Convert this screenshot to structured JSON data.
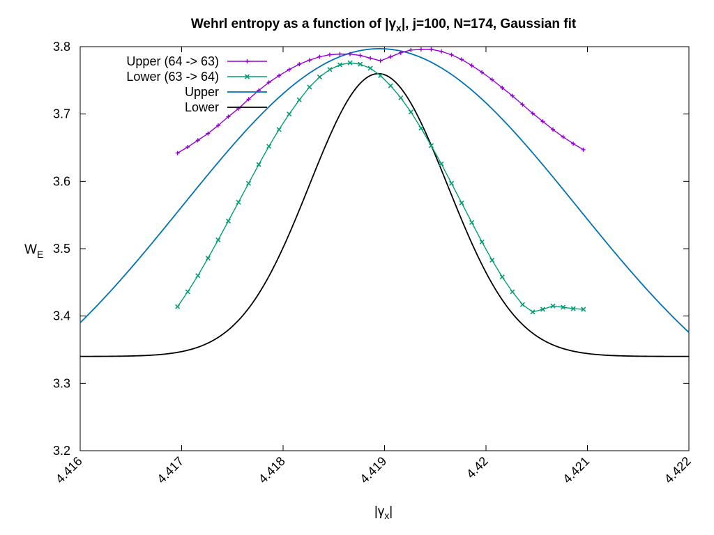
{
  "chart_data": {
    "type": "line",
    "title": {
      "pre": "Wehrl entropy as a function of |",
      "gamma": "γ",
      "sub": "x",
      "post": "|,  j=100, N=174, Gaussian fit"
    },
    "xlabel": {
      "pre": "|",
      "gamma": "γ",
      "sub": "x",
      "post": "|"
    },
    "ylabel": {
      "main": "W",
      "sub": "E"
    },
    "xlim": [
      4.416,
      4.422
    ],
    "ylim": [
      3.2,
      3.8
    ],
    "xticks": [
      "4.416",
      "4.417",
      "4.418",
      "4.419",
      "4.42",
      "4.421",
      "4.422"
    ],
    "yticks": [
      "3.2",
      "3.3",
      "3.4",
      "3.5",
      "3.6",
      "3.7",
      "3.8"
    ],
    "grid": false,
    "legend_position": "top-left",
    "series": [
      {
        "name": "Upper (64 -> 63)",
        "color": "#9400d3",
        "marker": "plus",
        "x": [
          4.41696,
          4.41706,
          4.41716,
          4.41726,
          4.41736,
          4.41746,
          4.41756,
          4.41766,
          4.41776,
          4.41786,
          4.41796,
          4.41806,
          4.41816,
          4.41826,
          4.41836,
          4.41846,
          4.41856,
          4.41866,
          4.41876,
          4.41886,
          4.41896,
          4.41906,
          4.41916,
          4.41926,
          4.41936,
          4.41946,
          4.41956,
          4.41966,
          4.41976,
          4.41986,
          4.41996,
          4.42006,
          4.42016,
          4.42026,
          4.42036,
          4.42046,
          4.42056,
          4.42066,
          4.42076,
          4.42086,
          4.42096
        ],
        "y": [
          3.642,
          3.651,
          3.661,
          3.671,
          3.683,
          3.696,
          3.708,
          3.722,
          3.735,
          3.747,
          3.757,
          3.766,
          3.774,
          3.78,
          3.785,
          3.788,
          3.789,
          3.789,
          3.787,
          3.783,
          3.779,
          3.785,
          3.791,
          3.795,
          3.796,
          3.796,
          3.793,
          3.788,
          3.781,
          3.772,
          3.762,
          3.751,
          3.739,
          3.727,
          3.714,
          3.701,
          3.689,
          3.677,
          3.666,
          3.656,
          3.647
        ]
      },
      {
        "name": "Lower (63 -> 64)",
        "color": "#009e73",
        "marker": "cross",
        "x": [
          4.41696,
          4.41706,
          4.41716,
          4.41726,
          4.41736,
          4.41746,
          4.41756,
          4.41766,
          4.41776,
          4.41786,
          4.41796,
          4.41806,
          4.41816,
          4.41826,
          4.41836,
          4.41846,
          4.41856,
          4.41866,
          4.41876,
          4.41886,
          4.41896,
          4.41906,
          4.41916,
          4.41926,
          4.41936,
          4.41946,
          4.41956,
          4.41966,
          4.41976,
          4.41986,
          4.41996,
          4.42006,
          4.42016,
          4.42026,
          4.42036,
          4.42046,
          4.42056,
          4.42066,
          4.42076,
          4.42086,
          4.42096
        ],
        "y": [
          3.414,
          3.436,
          3.46,
          3.486,
          3.513,
          3.541,
          3.569,
          3.597,
          3.625,
          3.652,
          3.677,
          3.7,
          3.721,
          3.74,
          3.755,
          3.766,
          3.773,
          3.776,
          3.774,
          3.768,
          3.757,
          3.742,
          3.724,
          3.703,
          3.679,
          3.653,
          3.626,
          3.597,
          3.568,
          3.539,
          3.51,
          3.483,
          3.458,
          3.436,
          3.417,
          3.406,
          3.41,
          3.415,
          3.413,
          3.411,
          3.41
        ]
      },
      {
        "name": "Upper",
        "color": "#0072b2",
        "marker": "none",
        "fit": {
          "base": 3.2,
          "amp": 0.597,
          "center": 4.41895,
          "sigma": 0.00195
        }
      },
      {
        "name": "Lower",
        "color": "#000000",
        "marker": "none",
        "fit": {
          "base": 3.34,
          "amp": 0.42,
          "center": 4.41894,
          "sigma": 0.00068
        }
      }
    ]
  }
}
